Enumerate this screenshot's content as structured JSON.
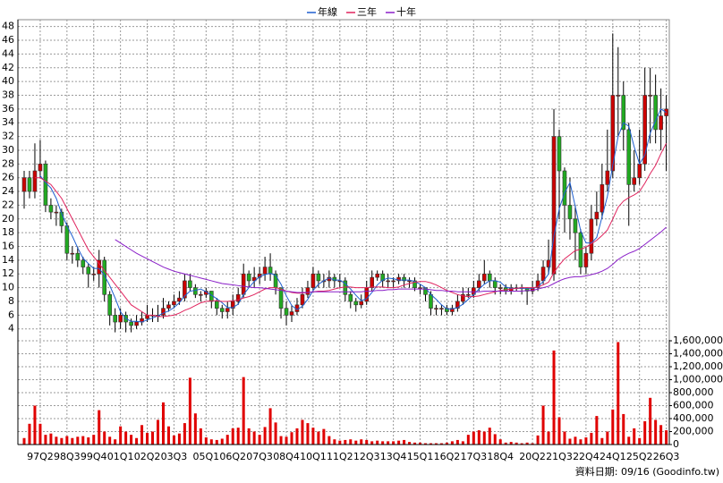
{
  "chart_data": {
    "type": "candlestick",
    "legend": "top",
    "grid": true,
    "up_color": "#cc0000",
    "down_color": "#22aa22",
    "footer": "資料日期: 09/16 (Goodinfo.tw)",
    "ylim": [
      2.4,
      49
    ],
    "yticks": [
      4,
      6,
      8,
      10,
      12,
      14,
      16,
      18,
      20,
      22,
      24,
      26,
      28,
      30,
      32,
      34,
      36,
      38,
      40,
      42,
      44,
      46,
      48
    ],
    "y2lim": [
      0,
      1600000
    ],
    "y2ticks": [
      0,
      {
        "value": 200000,
        "label": "200,000"
      },
      {
        "value": 400000,
        "label": "400,000"
      },
      {
        "value": 600000,
        "label": "600,000"
      },
      {
        "value": 800000,
        "label": "800,000"
      },
      {
        "value": 1000000,
        "label": "1,000,000"
      },
      {
        "value": 1200000,
        "label": "1,200,000"
      },
      {
        "value": 1400000,
        "label": "1,400,000"
      },
      {
        "value": 1600000,
        "label": "1,600,000"
      }
    ],
    "categories": [
      null,
      null,
      null,
      "97Q2",
      null,
      null,
      null,
      null,
      "98Q3",
      null,
      null,
      null,
      null,
      "99Q4",
      null,
      null,
      null,
      null,
      "01Q1",
      null,
      null,
      null,
      null,
      "02Q2",
      null,
      null,
      null,
      null,
      "03Q3",
      null,
      null,
      null,
      null,
      null,
      "05Q1",
      null,
      null,
      null,
      null,
      "06Q2",
      null,
      null,
      null,
      null,
      "07Q3",
      null,
      null,
      null,
      null,
      "08Q4",
      null,
      null,
      null,
      null,
      "10Q1",
      null,
      null,
      null,
      null,
      "11Q2",
      null,
      null,
      null,
      null,
      "12Q3",
      null,
      null,
      null,
      null,
      "13Q4",
      null,
      null,
      null,
      null,
      "15Q1",
      null,
      null,
      null,
      null,
      "16Q2",
      null,
      null,
      null,
      null,
      "17Q3",
      null,
      null,
      null,
      null,
      "18Q4",
      null,
      null,
      null,
      null,
      null,
      "20Q2",
      null,
      null,
      null,
      null,
      "21Q3",
      null,
      null,
      null,
      null,
      "22Q4",
      null,
      null,
      null,
      null,
      "24Q1",
      null,
      null,
      null,
      null,
      "25Q2",
      null,
      null,
      null,
      null,
      "26Q3"
    ],
    "open": [
      24,
      26,
      24,
      27,
      28,
      22,
      21,
      21,
      19,
      15,
      15,
      14,
      13,
      12,
      12,
      14,
      9,
      6,
      5,
      6,
      5,
      4.5,
      5,
      5.5,
      6,
      6,
      6,
      7,
      7.5,
      8,
      8.5,
      11,
      10,
      9,
      9,
      9.5,
      8,
      7,
      6.5,
      7,
      8,
      9,
      12,
      11,
      11.5,
      12,
      13,
      12,
      10,
      7,
      6,
      6.5,
      7.5,
      9,
      10,
      12,
      11,
      11,
      11.5,
      11,
      11,
      9,
      8,
      7.5,
      8,
      10,
      11.5,
      12,
      11,
      11,
      11,
      11.5,
      11,
      11,
      10,
      10,
      9,
      7,
      7,
      7,
      6.5,
      7,
      8,
      9,
      9,
      10,
      11,
      12,
      11,
      10,
      10,
      9.5,
      10,
      10,
      10,
      9.5,
      10,
      11,
      13,
      12,
      32,
      27,
      22,
      20,
      18,
      13,
      15,
      20,
      21,
      25,
      27,
      38,
      38,
      33,
      25,
      26,
      28,
      38,
      38,
      33,
      35
    ],
    "high": [
      27,
      27,
      31,
      31.5,
      28.5,
      23,
      22,
      21.5,
      19.5,
      16,
      16,
      14.5,
      13.5,
      13,
      15.5,
      14.5,
      9.5,
      7,
      7,
      6.5,
      5.5,
      6,
      6.5,
      7.5,
      7,
      7.5,
      8.5,
      8,
      9,
      9.5,
      12,
      12,
      10.5,
      9.5,
      10,
      9.5,
      8.5,
      7.5,
      8,
      9,
      10,
      13.5,
      12.5,
      13,
      13,
      14.5,
      15,
      12.5,
      10,
      8,
      7.5,
      8.5,
      10,
      11,
      13,
      12.5,
      12,
      12.5,
      12,
      12,
      11.5,
      9.5,
      8.5,
      9,
      11,
      12.5,
      12.5,
      12.5,
      12,
      11.5,
      12,
      12,
      11.5,
      11.5,
      10.5,
      10,
      9.5,
      7.5,
      7.5,
      7.5,
      7.5,
      9,
      10,
      10,
      11,
      12,
      14,
      12.5,
      11.5,
      10.5,
      10.5,
      10.5,
      10.5,
      10.5,
      10,
      11,
      12,
      14,
      17,
      36,
      33,
      27.5,
      26,
      22,
      18.5,
      16,
      22,
      24,
      28,
      33,
      47,
      45,
      40,
      34,
      30,
      33,
      42,
      42,
      41,
      39,
      38
    ],
    "low": [
      21.5,
      23,
      23,
      26,
      21,
      20,
      19,
      18,
      14,
      13.5,
      13,
      12,
      10,
      11,
      10,
      8,
      4.5,
      3.5,
      4,
      3.5,
      3.5,
      4,
      4.5,
      5,
      5,
      5,
      5.5,
      6.5,
      7,
      7.5,
      8,
      9.5,
      8.5,
      8,
      8.5,
      7,
      6,
      5.5,
      5.5,
      6,
      7.5,
      8.5,
      10,
      10,
      10.5,
      11,
      11,
      9,
      5.5,
      4.5,
      5,
      6,
      7,
      8.5,
      9.5,
      10,
      10,
      10,
      10,
      10,
      8,
      7,
      6.5,
      7,
      7.5,
      9.5,
      11,
      10,
      10,
      10,
      10.5,
      10,
      10,
      9.5,
      9,
      8,
      6,
      6,
      6,
      6,
      6,
      6.5,
      7.5,
      8.5,
      8.5,
      9.5,
      10.5,
      10,
      9,
      9,
      9,
      9,
      9.5,
      9,
      7.5,
      9,
      9.5,
      10.5,
      12,
      11,
      20,
      18,
      17,
      14,
      12,
      12,
      14,
      19,
      20,
      24,
      26,
      32,
      30,
      19,
      24,
      25,
      27,
      31,
      31,
      30,
      27
    ],
    "close": [
      26,
      24,
      27,
      28,
      22,
      21,
      21,
      19,
      15,
      15,
      14,
      13,
      12,
      12,
      14,
      9,
      6,
      5,
      6,
      5,
      4.5,
      5,
      5.5,
      6,
      6,
      6,
      7,
      7.5,
      8,
      8.5,
      11,
      10,
      9,
      9,
      9.5,
      8,
      7,
      6.5,
      7,
      8,
      9,
      12,
      11,
      11.5,
      12,
      13,
      12,
      10,
      7,
      6,
      6.5,
      7.5,
      9,
      10,
      12,
      11,
      11,
      11.5,
      11,
      11,
      9,
      8,
      7.5,
      8,
      10,
      11.5,
      12,
      11,
      11,
      11,
      11.5,
      11,
      11,
      10,
      10,
      9,
      7,
      7,
      7,
      6.5,
      7,
      8,
      9,
      9,
      10,
      11,
      12,
      11,
      10,
      10,
      9.5,
      10,
      10,
      10,
      9.5,
      10,
      11,
      13,
      14,
      32,
      27,
      22,
      20,
      18,
      13,
      15,
      20,
      21,
      25,
      27,
      38,
      38,
      33,
      25,
      26,
      28,
      38,
      38,
      33,
      35,
      36
    ],
    "series": [
      {
        "name": "年線",
        "color": "#1f5fd0",
        "values": [
          null,
          null,
          null,
          26.3,
          25.3,
          24.5,
          23,
          20.8,
          19,
          17.5,
          15.8,
          14.3,
          13.5,
          12.8,
          12.8,
          11.8,
          10.3,
          8.5,
          6.5,
          5.5,
          5.1,
          5.1,
          5,
          5.3,
          5.6,
          5.9,
          6.3,
          6.6,
          7.1,
          7.8,
          8.8,
          9.5,
          9.6,
          9.8,
          9.4,
          8.9,
          8.4,
          7.8,
          7.1,
          7.1,
          7.6,
          9,
          10,
          10.9,
          11.6,
          11.9,
          12.1,
          11.8,
          10.5,
          8.8,
          7.4,
          6.8,
          7.3,
          8.3,
          9.6,
          10.5,
          11,
          11.4,
          11.1,
          11.1,
          10.6,
          9.8,
          8.9,
          8.1,
          8.4,
          9.3,
          10.4,
          11.1,
          11.4,
          11.3,
          11.1,
          11.1,
          11.1,
          10.9,
          10.5,
          10,
          9,
          8.3,
          7.5,
          6.9,
          6.9,
          7.1,
          7.6,
          8.3,
          9,
          9.8,
          10.5,
          11,
          11,
          10.8,
          10.1,
          9.9,
          9.9,
          9.9,
          9.9,
          9.9,
          10.1,
          10.9,
          12,
          17.5,
          21.5,
          23.8,
          25.3,
          21.8,
          18.3,
          16.5,
          16.5,
          17.3,
          20.3,
          23.3,
          27.8,
          32,
          34,
          33.5,
          30.5,
          28,
          29.3,
          32.5,
          34.3,
          36,
          35.5
        ]
      },
      {
        "name": "三年",
        "color": "#e0245e",
        "values": [
          null,
          null,
          26,
          26,
          25.5,
          25,
          24,
          23,
          21.5,
          20,
          18.5,
          17,
          15.5,
          14.5,
          13.5,
          12.5,
          11.5,
          10.5,
          9.5,
          8.5,
          7.5,
          7,
          6.5,
          6,
          6,
          5.8,
          5.8,
          5.9,
          6,
          6.3,
          6.7,
          7,
          7.4,
          7.8,
          8,
          8.1,
          8.1,
          8,
          8,
          8.1,
          8.2,
          8.5,
          8.7,
          9,
          9.4,
          9.8,
          10,
          10,
          9.8,
          9.5,
          9.3,
          9.2,
          9.2,
          9.3,
          9.4,
          9.5,
          9.5,
          9.6,
          9.8,
          10,
          10.1,
          10.1,
          10,
          10,
          10,
          10.1,
          10.1,
          10.1,
          10,
          10,
          10.1,
          10.4,
          10.6,
          10.8,
          10.9,
          10.9,
          10.7,
          10.4,
          10,
          9.6,
          9.3,
          9,
          8.8,
          8.7,
          8.7,
          8.8,
          9,
          9.2,
          9.4,
          9.6,
          9.7,
          9.8,
          9.9,
          10,
          10,
          10,
          10.1,
          10.4,
          10.8,
          12.2,
          13.3,
          14.2,
          14.8,
          15.4,
          15.6,
          15.9,
          16.4,
          16.9,
          17.6,
          18.4,
          20,
          21.7,
          22.6,
          23.1,
          23.5,
          24,
          25.2,
          26.6,
          27.8,
          29.5,
          31
        ]
      },
      {
        "name": "十年",
        "color": "#8a1fc8",
        "values": [
          null,
          null,
          null,
          null,
          null,
          null,
          null,
          null,
          null,
          null,
          null,
          null,
          null,
          null,
          null,
          null,
          null,
          17,
          16.5,
          16,
          15.5,
          15,
          14.6,
          14.2,
          13.8,
          13.4,
          13,
          12.7,
          12.4,
          12.2,
          12,
          11.8,
          11.6,
          11.4,
          11.2,
          11,
          10.8,
          10.6,
          10.5,
          10.4,
          10.3,
          10.2,
          10.1,
          10,
          10,
          9.9,
          9.8,
          9.7,
          9.6,
          9.5,
          9.4,
          9.3,
          9.3,
          9.3,
          9.4,
          9.4,
          9.4,
          9.4,
          9.4,
          9.4,
          9.4,
          9.4,
          9.4,
          9.4,
          9.5,
          9.5,
          9.6,
          9.6,
          9.7,
          9.7,
          9.8,
          9.8,
          9.8,
          9.8,
          9.8,
          9.8,
          9.7,
          9.6,
          9.6,
          9.5,
          9.5,
          9.4,
          9.4,
          9.4,
          9.4,
          9.4,
          9.5,
          9.5,
          9.5,
          9.5,
          9.5,
          9.5,
          9.5,
          9.5,
          9.6,
          9.6,
          9.8,
          10,
          10.2,
          10.6,
          11,
          11.3,
          11.5,
          11.6,
          11.6,
          11.7,
          11.9,
          12.1,
          12.4,
          12.8,
          13.4,
          14.1,
          14.6,
          15,
          15.3,
          15.7,
          16.3,
          16.9,
          17.5,
          18.1,
          18.8
        ]
      }
    ],
    "volume": {
      "color": "#e00000",
      "axis": "y2",
      "values": [
        100000,
        320000,
        600000,
        320000,
        150000,
        170000,
        120000,
        100000,
        130000,
        100000,
        120000,
        130000,
        110000,
        150000,
        530000,
        200000,
        120000,
        80000,
        280000,
        200000,
        150000,
        100000,
        300000,
        180000,
        200000,
        380000,
        650000,
        280000,
        140000,
        170000,
        330000,
        1030000,
        480000,
        250000,
        110000,
        80000,
        70000,
        90000,
        150000,
        250000,
        260000,
        1040000,
        250000,
        200000,
        150000,
        270000,
        560000,
        340000,
        130000,
        120000,
        190000,
        250000,
        380000,
        330000,
        260000,
        200000,
        240000,
        130000,
        80000,
        60000,
        70000,
        80000,
        60000,
        80000,
        70000,
        50000,
        60000,
        50000,
        50000,
        50000,
        60000,
        70000,
        40000,
        30000,
        30000,
        20000,
        20000,
        20000,
        20000,
        30000,
        50000,
        70000,
        50000,
        150000,
        200000,
        220000,
        200000,
        260000,
        160000,
        80000,
        30000,
        40000,
        30000,
        20000,
        30000,
        20000,
        140000,
        600000,
        200000,
        1450000,
        420000,
        200000,
        90000,
        120000,
        80000,
        110000,
        180000,
        440000,
        100000,
        200000,
        540000,
        1580000,
        470000,
        120000,
        250000,
        100000,
        360000,
        720000,
        380000,
        300000,
        220000
      ]
    }
  }
}
